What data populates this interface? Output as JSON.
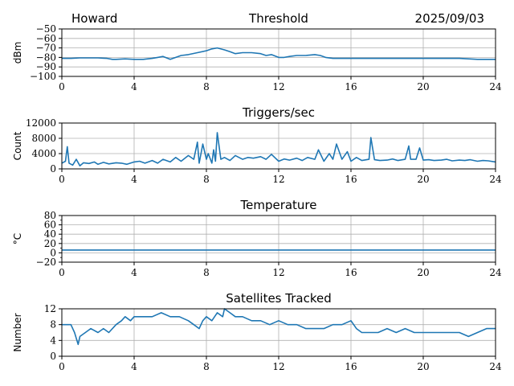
{
  "header": {
    "station": "Howard",
    "date": "2025/09/03"
  },
  "chart_data": [
    {
      "type": "line",
      "title": "Threshold",
      "xlabel": "",
      "ylabel": "dBm",
      "xlim": [
        0,
        24
      ],
      "ylim": [
        -100,
        -50
      ],
      "xticks": [
        0,
        4,
        8,
        12,
        16,
        20,
        24
      ],
      "yticks": [
        -100,
        -90,
        -80,
        -70,
        -60,
        -50
      ],
      "ytick_labels": [
        "−100",
        "−90",
        "−80",
        "−70",
        "−60",
        "−50"
      ],
      "grid": true,
      "color": "#1f77b4",
      "series": [
        {
          "x": [
            0,
            0.5,
            1,
            1.5,
            2,
            2.5,
            2.8,
            3,
            3.5,
            4,
            4.5,
            5,
            5.3,
            5.6,
            6,
            6.3,
            6.6,
            7,
            7.5,
            8,
            8.3,
            8.6,
            9,
            9.3,
            9.6,
            10,
            10.5,
            11,
            11.3,
            11.6,
            12,
            12.3,
            12.6,
            13,
            13.5,
            14,
            14.3,
            14.6,
            15,
            15.5,
            16,
            17,
            18,
            19,
            20,
            21,
            22,
            23,
            24
          ],
          "y": [
            -81,
            -81,
            -80.5,
            -80.5,
            -80.5,
            -81,
            -82,
            -82,
            -81.5,
            -82,
            -82,
            -81,
            -80,
            -79,
            -82,
            -80,
            -78,
            -77,
            -75,
            -73,
            -71,
            -70,
            -72,
            -74,
            -76,
            -75,
            -75,
            -76,
            -78,
            -77,
            -80,
            -80,
            -79,
            -78,
            -78,
            -77,
            -78,
            -80,
            -81,
            -81,
            -81,
            -81,
            -81,
            -81,
            -81,
            -81,
            -81,
            -82,
            -82
          ]
        }
      ]
    },
    {
      "type": "line",
      "title": "Triggers/sec",
      "xlabel": "",
      "ylabel": "Count",
      "xlim": [
        0,
        24
      ],
      "ylim": [
        0,
        12000
      ],
      "xticks": [
        0,
        4,
        8,
        12,
        16,
        20,
        24
      ],
      "yticks": [
        0,
        4000,
        8000,
        12000
      ],
      "ytick_labels": [
        "0",
        "4000",
        "8000",
        "12000"
      ],
      "grid": true,
      "color": "#1f77b4",
      "series": [
        {
          "x": [
            0,
            0.2,
            0.3,
            0.4,
            0.6,
            0.8,
            1.0,
            1.2,
            1.5,
            1.8,
            2.0,
            2.3,
            2.6,
            3.0,
            3.3,
            3.6,
            4.0,
            4.3,
            4.6,
            5.0,
            5.3,
            5.6,
            6.0,
            6.3,
            6.6,
            7.0,
            7.3,
            7.5,
            7.6,
            7.8,
            8.0,
            8.1,
            8.3,
            8.4,
            8.5,
            8.6,
            8.8,
            9.0,
            9.3,
            9.6,
            10.0,
            10.3,
            10.6,
            11.0,
            11.3,
            11.6,
            12.0,
            12.3,
            12.6,
            13.0,
            13.3,
            13.6,
            14.0,
            14.2,
            14.5,
            14.8,
            15.0,
            15.2,
            15.5,
            15.8,
            16.0,
            16.3,
            16.6,
            17.0,
            17.1,
            17.3,
            17.6,
            18.0,
            18.3,
            18.6,
            19.0,
            19.2,
            19.3,
            19.6,
            19.8,
            20.0,
            20.3,
            20.6,
            21.0,
            21.3,
            21.6,
            22.0,
            22.3,
            22.6,
            23.0,
            23.3,
            23.6,
            24.0
          ],
          "y": [
            1500,
            2000,
            5800,
            1500,
            1000,
            2500,
            800,
            1600,
            1400,
            1800,
            1200,
            1700,
            1300,
            1600,
            1500,
            1200,
            1800,
            2000,
            1500,
            2200,
            1500,
            2500,
            1800,
            3000,
            2000,
            3500,
            2500,
            7000,
            1500,
            6500,
            2500,
            4000,
            1500,
            5000,
            2000,
            9500,
            2500,
            3000,
            2200,
            3500,
            2500,
            3000,
            2800,
            3200,
            2500,
            3800,
            2000,
            2600,
            2300,
            2800,
            2200,
            3000,
            2500,
            5000,
            2000,
            4000,
            2500,
            6500,
            2500,
            4500,
            2000,
            3000,
            2200,
            2500,
            8200,
            2400,
            2200,
            2300,
            2600,
            2200,
            2500,
            6000,
            2500,
            2500,
            5500,
            2300,
            2400,
            2200,
            2300,
            2500,
            2100,
            2300,
            2200,
            2400,
            2000,
            2200,
            2100,
            1800
          ]
        }
      ]
    },
    {
      "type": "line",
      "title": "Temperature",
      "xlabel": "",
      "ylabel": "°C",
      "xlim": [
        0,
        24
      ],
      "ylim": [
        -20,
        80
      ],
      "xticks": [
        0,
        4,
        8,
        12,
        16,
        20,
        24
      ],
      "yticks": [
        -20,
        0,
        20,
        40,
        60,
        80
      ],
      "ytick_labels": [
        "−20",
        "0",
        "20",
        "40",
        "60",
        "80"
      ],
      "minor_yticks": [
        -10,
        10,
        30,
        50,
        70
      ],
      "grid": true,
      "color": "#1f77b4",
      "series": [
        {
          "x": [
            0,
            24
          ],
          "y": [
            6,
            6
          ]
        }
      ]
    },
    {
      "type": "line",
      "title": "Satellites Tracked",
      "xlabel": "",
      "ylabel": "Number",
      "xlim": [
        0,
        24
      ],
      "ylim": [
        0,
        12
      ],
      "xticks": [
        0,
        4,
        8,
        12,
        16,
        20,
        24
      ],
      "yticks": [
        0,
        4,
        8,
        12
      ],
      "ytick_labels": [
        "0",
        "4",
        "8",
        "12"
      ],
      "grid": true,
      "color": "#1f77b4",
      "series": [
        {
          "x": [
            0,
            0.5,
            0.7,
            0.9,
            1.0,
            1.3,
            1.6,
            2.0,
            2.3,
            2.6,
            3.0,
            3.3,
            3.5,
            3.8,
            4.0,
            4.5,
            5.0,
            5.5,
            6.0,
            6.5,
            7.0,
            7.3,
            7.6,
            7.8,
            8.0,
            8.3,
            8.6,
            8.9,
            9.0,
            9.3,
            9.6,
            10.0,
            10.5,
            11.0,
            11.5,
            12.0,
            12.5,
            13.0,
            13.5,
            14.0,
            14.5,
            15.0,
            15.5,
            16.0,
            16.3,
            16.6,
            17.0,
            17.5,
            18.0,
            18.5,
            19.0,
            19.5,
            20.0,
            20.5,
            21.0,
            21.5,
            22.0,
            22.5,
            23.0,
            23.5,
            24.0
          ],
          "y": [
            8,
            8,
            6,
            3,
            5,
            6,
            7,
            6,
            7,
            6,
            8,
            9,
            10,
            9,
            10,
            10,
            10,
            11,
            10,
            10,
            9,
            8,
            7,
            9,
            10,
            9,
            11,
            10,
            12,
            11,
            10,
            10,
            9,
            9,
            8,
            9,
            8,
            8,
            7,
            7,
            7,
            8,
            8,
            9,
            7,
            6,
            6,
            6,
            7,
            6,
            7,
            6,
            6,
            6,
            6,
            6,
            6,
            5,
            6,
            7,
            7
          ]
        }
      ]
    }
  ]
}
